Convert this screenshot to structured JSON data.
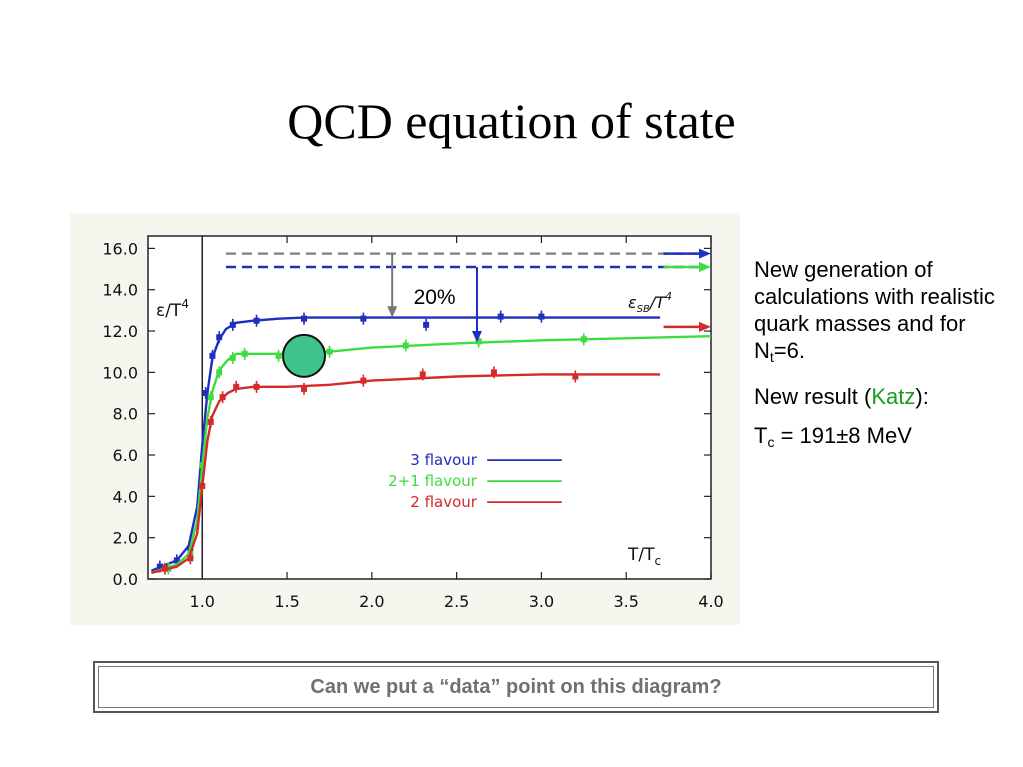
{
  "slide": {
    "title": "QCD equation of state",
    "side_text": {
      "line1": "New generation of calculations with realistic quark masses and for N",
      "line1_sub": "t",
      "line1_end": "=6.",
      "line2_start": "New result (",
      "line2_link": "Katz",
      "line2_end": "):",
      "line3_prefix": "T",
      "line3_sub": "c",
      "line3_rest": " = 191±8 MeV"
    },
    "question": "Can we put a “data” point on this diagram?"
  },
  "chart_data": {
    "type": "line",
    "x_ticks": [
      "1.0",
      "1.5",
      "2.0",
      "2.5",
      "3.0",
      "3.5",
      "4.0"
    ],
    "y_ticks": [
      "0.0",
      "2.0",
      "4.0",
      "6.0",
      "8.0",
      "10.0",
      "12.0",
      "14.0",
      "16.0"
    ],
    "xlim": [
      0.68,
      4.0
    ],
    "ylim": [
      0,
      16.6
    ],
    "ylabel": "ε/T",
    "ylabel_sup": "4",
    "xlabel": "T/T",
    "xlabel_sub": "c",
    "sb_label": "ε",
    "sb_label_sub": "SB",
    "sb_label_sup": "4",
    "annotation_20pct": "20%",
    "vertical_line_x": 1.0,
    "legend": [
      "3 flavour",
      "2+1 flavour",
      "2 flavour"
    ],
    "colors": {
      "three": "#1f2fbf",
      "twoplusone": "#3fdc3f",
      "two": "#d42a2a",
      "dash_gray": "#8a8a8a",
      "circle": "#3fc48c"
    },
    "series": [
      {
        "name": "3 flavour",
        "color": "#1f2fbf",
        "x": [
          0.7,
          0.85,
          0.92,
          0.97,
          1.0,
          1.03,
          1.06,
          1.1,
          1.14,
          1.2,
          1.3,
          1.45,
          1.6,
          2.0,
          2.5,
          3.0,
          3.7
        ],
        "y": [
          0.4,
          0.9,
          1.6,
          3.5,
          6.5,
          9.0,
          10.7,
          11.6,
          12.1,
          12.4,
          12.5,
          12.6,
          12.65,
          12.65,
          12.65,
          12.65,
          12.65
        ],
        "points_x": [
          0.75,
          0.85,
          0.93,
          1.02,
          1.06,
          1.1,
          1.18,
          1.32,
          1.6,
          1.95,
          2.32,
          2.76,
          3.0
        ],
        "points_y": [
          0.6,
          0.9,
          1.5,
          9.0,
          10.8,
          11.7,
          12.3,
          12.5,
          12.6,
          12.6,
          12.3,
          12.7,
          12.7
        ],
        "sb_value": 15.7
      },
      {
        "name": "2+1 flavour",
        "color": "#3fdc3f",
        "x": [
          0.7,
          0.85,
          0.92,
          0.97,
          1.0,
          1.03,
          1.06,
          1.1,
          1.15,
          1.2,
          1.3,
          1.5,
          1.75,
          2.0,
          2.5,
          3.0,
          3.5,
          4.0
        ],
        "y": [
          0.3,
          0.7,
          1.2,
          2.8,
          5.5,
          7.8,
          9.1,
          10.1,
          10.6,
          10.9,
          10.9,
          10.9,
          11.0,
          11.2,
          11.4,
          11.55,
          11.65,
          11.75
        ],
        "points_x": [
          0.8,
          0.93,
          1.0,
          1.05,
          1.1,
          1.18,
          1.25,
          1.45,
          1.75,
          2.2,
          2.63,
          3.25
        ],
        "points_y": [
          0.5,
          1.2,
          5.5,
          8.8,
          10.0,
          10.7,
          10.9,
          10.8,
          11.0,
          11.3,
          11.5,
          11.6
        ],
        "sb_value": 15.1
      },
      {
        "name": "2 flavour",
        "color": "#d42a2a",
        "x": [
          0.7,
          0.85,
          0.92,
          0.97,
          1.0,
          1.03,
          1.06,
          1.1,
          1.15,
          1.2,
          1.3,
          1.5,
          1.75,
          2.0,
          2.5,
          3.0,
          3.7
        ],
        "y": [
          0.3,
          0.6,
          1.0,
          2.2,
          4.5,
          6.7,
          7.9,
          8.6,
          9.0,
          9.2,
          9.3,
          9.3,
          9.4,
          9.6,
          9.8,
          9.9,
          9.9
        ],
        "points_x": [
          0.78,
          0.93,
          1.0,
          1.05,
          1.12,
          1.2,
          1.32,
          1.6,
          1.95,
          2.3,
          2.72,
          3.2
        ],
        "points_y": [
          0.5,
          1.0,
          4.5,
          7.6,
          8.8,
          9.3,
          9.3,
          9.2,
          9.6,
          9.9,
          10.0,
          9.8
        ],
        "sb_value": 12.2
      }
    ]
  }
}
